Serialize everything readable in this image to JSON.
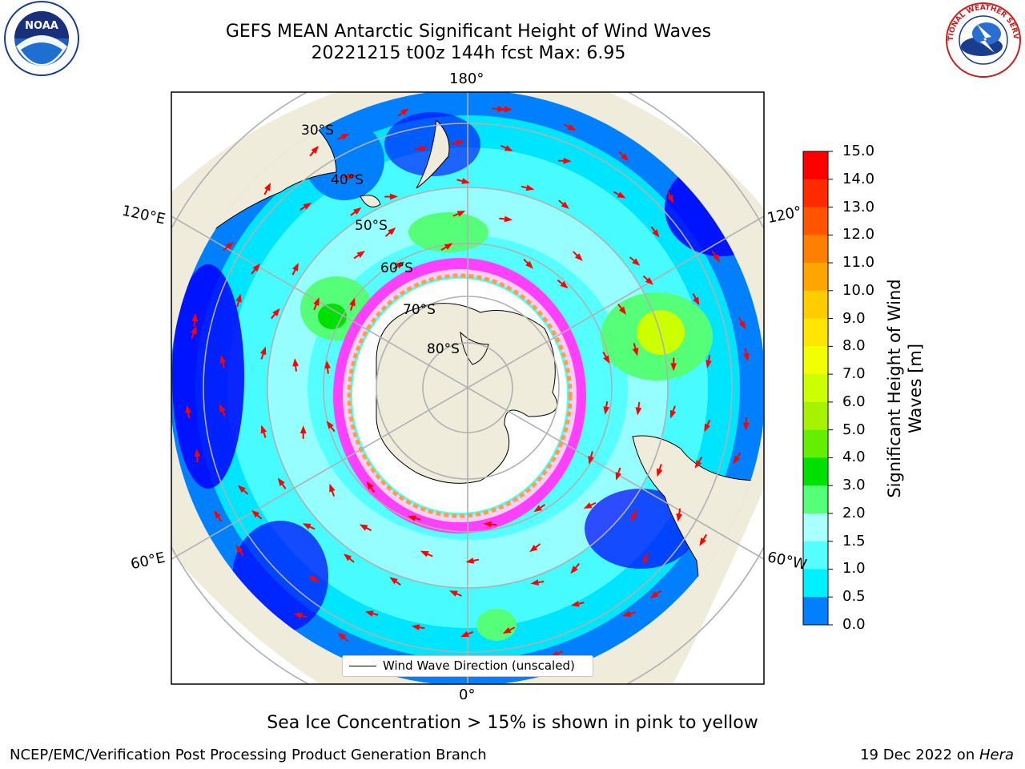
{
  "header": {
    "title_line1": "GEFS MEAN Antarctic Significant Height of Wind Waves",
    "title_line2": "20221215 t00z 144h fcst   Max: 6.95"
  },
  "map": {
    "projection": "south-polar-stereographic",
    "longitude_labels": [
      "180°",
      "120°E",
      "120°",
      "60°E",
      "60°W",
      "0°"
    ],
    "latitude_labels": [
      "30°S",
      "40°S",
      "50°S",
      "60°S",
      "70°S",
      "80°S"
    ],
    "land_color": "#efecdc",
    "ice_colors": [
      "#ff40ff",
      "#ffd0ff",
      "#ffa040",
      "#ffff80"
    ]
  },
  "colorbar": {
    "label": "Significant Height of Wind Waves [m]",
    "ticks": [
      "15.0",
      "14.0",
      "13.0",
      "12.0",
      "11.0",
      "10.0",
      "9.0",
      "8.0",
      "7.0",
      "6.0",
      "5.0",
      "4.0",
      "3.0",
      "2.0",
      "1.5",
      "1.0",
      "0.5",
      "0.0"
    ],
    "colors": [
      "#ff0000",
      "#ff2a00",
      "#ff5500",
      "#ff8000",
      "#ffa500",
      "#ffcc00",
      "#ffe600",
      "#f2ff00",
      "#ccff00",
      "#a6f200",
      "#66ee00",
      "#00e000",
      "#55ff77",
      "#aaffff",
      "#55ffff",
      "#00f0ff",
      "#0080ff",
      "#0000ff"
    ]
  },
  "legend": {
    "label": "Wind Wave Direction (unscaled)"
  },
  "note": "Sea Ice Concentration > 15% is shown in pink to yellow",
  "footer": {
    "left": "NCEP/EMC/Verification Post Processing Product Generation Branch",
    "right_prefix": "19 Dec 2022 on ",
    "right_host": "Hera"
  },
  "logos": {
    "left": "NOAA",
    "right": "NATIONAL WEATHER SERVICE"
  }
}
